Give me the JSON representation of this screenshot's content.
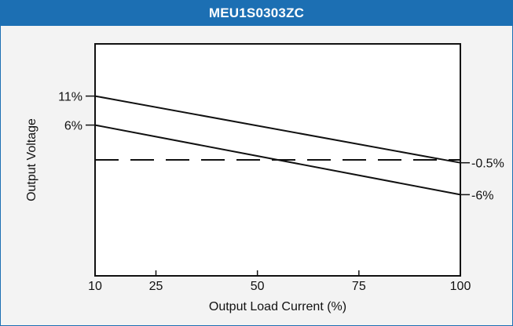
{
  "chart_data": {
    "type": "line",
    "title": "MEU1S0303ZC",
    "xlabel": "Output Load Current (%)",
    "ylabel": "Output Voltage",
    "x_ticks": [
      10,
      25,
      50,
      75,
      100
    ],
    "xlim": [
      10,
      100
    ],
    "ylim": [
      -20,
      20
    ],
    "grid": false,
    "series": [
      {
        "x": [
          10,
          100
        ],
        "values": [
          11,
          -0.5
        ],
        "style": "solid",
        "start_label": "11%",
        "end_label": "-0.5%"
      },
      {
        "x": [
          10,
          100
        ],
        "values": [
          6,
          -6
        ],
        "style": "solid",
        "start_label": "6%",
        "end_label": "-6%"
      },
      {
        "x": [
          10,
          100
        ],
        "values": [
          0,
          0
        ],
        "style": "dashed"
      }
    ],
    "colors": {
      "header": "#1c6fb3",
      "background": "#f3f3f3",
      "plot_background": "#ffffff",
      "line": "#111111"
    }
  }
}
